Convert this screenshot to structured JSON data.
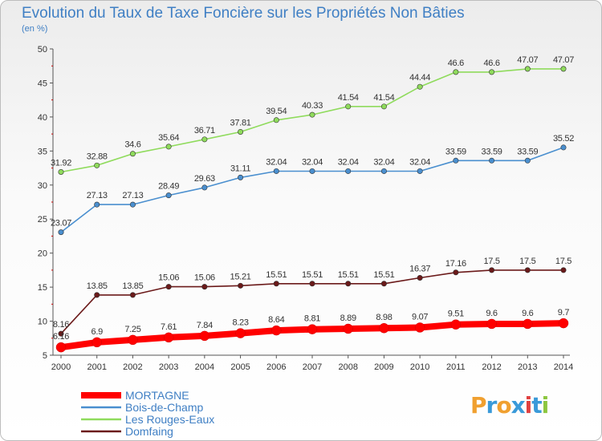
{
  "chart_data": {
    "type": "line",
    "title": "Evolution du Taux de Taxe Foncière sur les Propriétés Non Bâties",
    "ylabel": "(en %)",
    "xlabel": "",
    "ylim": [
      5,
      50
    ],
    "yticks": [
      5,
      10,
      15,
      20,
      25,
      30,
      35,
      40,
      45,
      50
    ],
    "x": [
      "2000",
      "2001",
      "2002",
      "2003",
      "2004",
      "2005",
      "2006",
      "2007",
      "2008",
      "2009",
      "2010",
      "2011",
      "2012",
      "2013",
      "2014"
    ],
    "grid": false,
    "legend_position": "bottom-left",
    "series": [
      {
        "name": "MORTAGNE",
        "color": "#ff0000",
        "values": [
          6.16,
          6.9,
          7.25,
          7.61,
          7.84,
          8.23,
          8.64,
          8.81,
          8.89,
          8.98,
          9.07,
          9.51,
          9.6,
          9.6,
          9.7
        ],
        "labels": [
          "6.16",
          "6.9",
          "7.25",
          "7.61",
          "7.84",
          "8.23",
          "8.64",
          "8.81",
          "8.89",
          "8.98",
          "9.07",
          "9.51",
          "9.6",
          "9.6",
          "9.7"
        ]
      },
      {
        "name": "Bois-de-Champ",
        "color": "#4a8fcf",
        "values": [
          23.07,
          27.13,
          27.13,
          28.49,
          29.63,
          31.11,
          32.04,
          32.04,
          32.04,
          32.04,
          32.04,
          33.59,
          33.59,
          33.59,
          35.52
        ],
        "labels": [
          "23.07",
          "27.13",
          "27.13",
          "28.49",
          "29.63",
          "31.11",
          "32.04",
          "32.04",
          "32.04",
          "32.04",
          "32.04",
          "33.59",
          "33.59",
          "33.59",
          "35.52"
        ]
      },
      {
        "name": "Les Rouges-Eaux",
        "color": "#8fdb5c",
        "values": [
          31.92,
          32.88,
          34.6,
          35.64,
          36.71,
          37.81,
          39.54,
          40.33,
          41.54,
          41.54,
          44.44,
          46.6,
          46.6,
          47.07,
          47.07
        ],
        "labels": [
          "31.92",
          "32.88",
          "34.6",
          "35.64",
          "36.71",
          "37.81",
          "39.54",
          "40.33",
          "41.54",
          "41.54",
          "44.44",
          "46.6",
          "46.6",
          "47.07",
          "47.07"
        ]
      },
      {
        "name": "Domfaing",
        "color": "#6b1a1a",
        "values": [
          8.16,
          13.85,
          13.85,
          15.06,
          15.06,
          15.21,
          15.51,
          15.51,
          15.51,
          15.51,
          16.37,
          17.16,
          17.5,
          17.5,
          17.5
        ],
        "labels": [
          "8.16",
          "13.85",
          "13.85",
          "15.06",
          "15.06",
          "15.21",
          "15.51",
          "15.51",
          "15.51",
          "15.51",
          "16.37",
          "17.16",
          "17.5",
          "17.5",
          "17.5"
        ]
      }
    ]
  },
  "logo": {
    "text": "Proxiti"
  }
}
